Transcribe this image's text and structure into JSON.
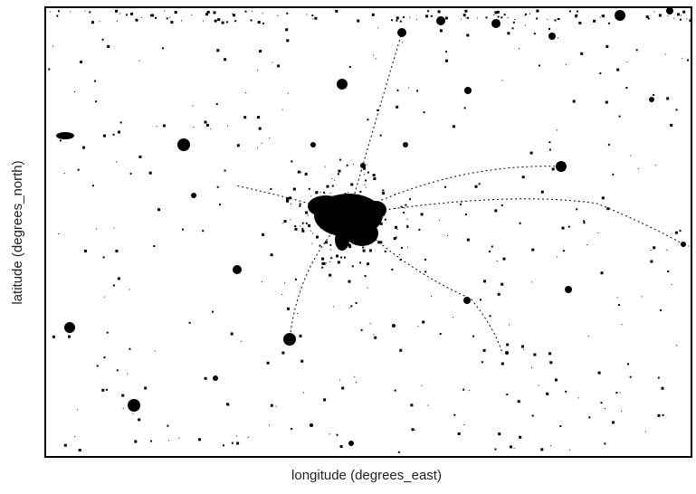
{
  "axes": {
    "x_label": "longitude (degrees_east)",
    "y_label": "latitude (degrees_north)"
  }
}
